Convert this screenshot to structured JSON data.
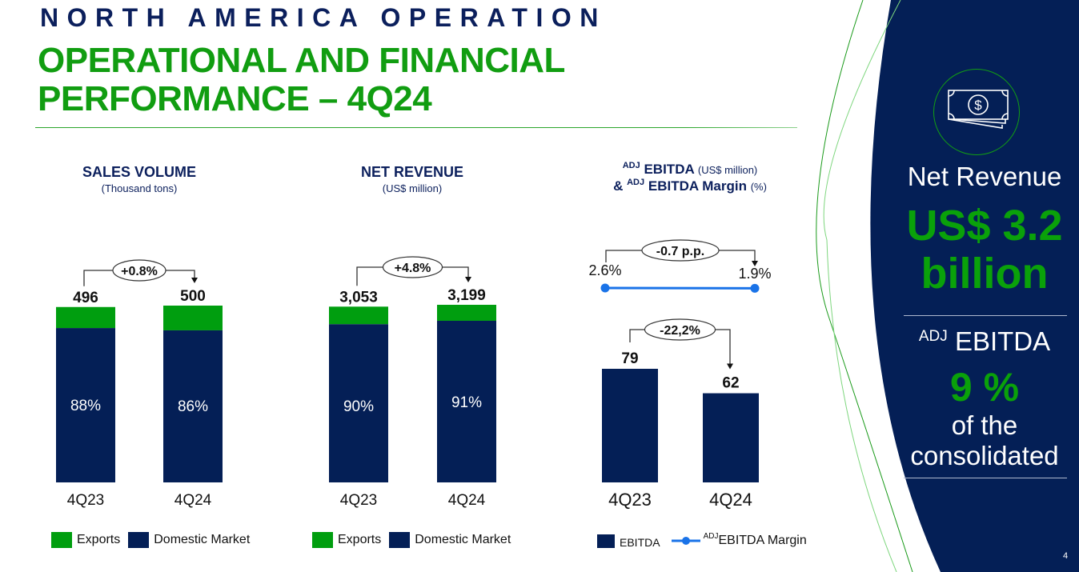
{
  "header": {
    "kicker": "NORTH AMERICA OPERATION",
    "title_line1": "OPERATIONAL AND FINANCIAL",
    "title_line2": "PERFORMANCE – 4Q24"
  },
  "colors": {
    "navy": "#041f56",
    "green": "#009e0f",
    "title_green": "#119d11",
    "margin_line_blue": "#1a73e8",
    "panel_bg": "#041f56"
  },
  "chart_data": [
    {
      "type": "bar",
      "stacked": true,
      "title": "SALES VOLUME",
      "subtitle": "(Thousand tons)",
      "categories": [
        "4Q23",
        "4Q24"
      ],
      "totals": [
        496,
        500
      ],
      "total_labels": [
        "496",
        "500"
      ],
      "series": [
        {
          "name": "Domestic Market",
          "share_pct": [
            88,
            86
          ],
          "labels": [
            "88%",
            "86%"
          ],
          "color": "#041f56"
        },
        {
          "name": "Exports",
          "share_pct": [
            12,
            14
          ],
          "color": "#009e0f"
        }
      ],
      "change_label": "+0.8%",
      "legend": [
        "Exports",
        "Domestic Market"
      ],
      "legend_position": "bottom"
    },
    {
      "type": "bar",
      "stacked": true,
      "title": "NET REVENUE",
      "subtitle": "(US$ million)",
      "categories": [
        "4Q23",
        "4Q24"
      ],
      "totals": [
        3053,
        3199
      ],
      "total_labels": [
        "3,053",
        "3,199"
      ],
      "series": [
        {
          "name": "Domestic Market",
          "share_pct": [
            90,
            91
          ],
          "labels": [
            "90%",
            "91%"
          ],
          "color": "#041f56"
        },
        {
          "name": "Exports",
          "share_pct": [
            10,
            9
          ],
          "color": "#009e0f"
        }
      ],
      "change_label": "+4.8%",
      "legend": [
        "Exports",
        "Domestic Market"
      ],
      "legend_position": "bottom"
    },
    {
      "type": "bar",
      "title_parts": {
        "sup1": "ADJ",
        "main1": "EBITDA",
        "unit1": "(US$ million)",
        "amp": "&",
        "sup2": "ADJ",
        "main2": "EBITDA Margin",
        "unit2": "(%)"
      },
      "categories": [
        "4Q23",
        "4Q24"
      ],
      "series": [
        {
          "name": "EBITDA",
          "values": [
            79,
            62
          ],
          "labels": [
            "79",
            "62"
          ],
          "color": "#041f56"
        },
        {
          "name": "ADJ EBITDA Margin",
          "kind": "line",
          "values": [
            2.6,
            1.9
          ],
          "labels": [
            "2.6%",
            "1.9%"
          ],
          "color": "#1a73e8"
        }
      ],
      "ebitda_change_label": "-22,2%",
      "margin_change_label": "-0.7 p.p.",
      "legend": {
        "bar": "EBITDA",
        "line_sup": "ADJ",
        "line": "EBITDA Margin"
      },
      "legend_position": "bottom"
    }
  ],
  "panel": {
    "icon": "money-bills-icon",
    "net_revenue_label": "Net Revenue",
    "net_revenue_value_line1": "US$ 3.2",
    "net_revenue_value_line2": "billion",
    "ebitda_sup": "ADJ",
    "ebitda_label": "EBITDA",
    "ebitda_share": "9 %",
    "ebitda_share_desc_line1": "of the",
    "ebitda_share_desc_line2": "consolidated"
  },
  "page_number": "4"
}
